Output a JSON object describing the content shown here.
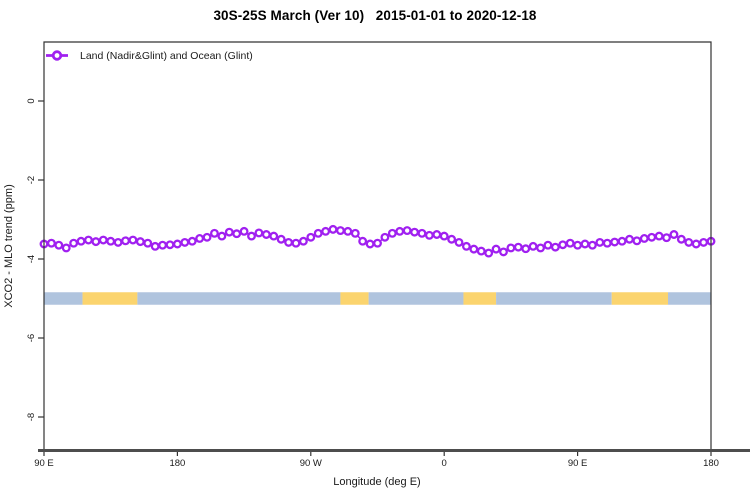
{
  "title": "30S-25S March (Ver 10)   2015-01-01 to 2020-12-18",
  "legend": {
    "label": "Land (Nadir&Glint) and Ocean (Glint)",
    "marker": "open-circle",
    "color": "#A020F0",
    "position": "top-left"
  },
  "axes": {
    "x": {
      "label": "Longitude (deg E)",
      "tick_labels": [
        "90 E",
        "180",
        "90 W",
        "0",
        "90 E",
        "180"
      ]
    },
    "y": {
      "label": "XCO2 - MLO trend (ppm)",
      "tick_labels": [
        "0",
        "-2",
        "-4",
        "-6",
        "-8"
      ]
    }
  },
  "chart_data": {
    "type": "line",
    "title": "30S-25S March (Ver 10)   2015-01-01 to 2020-12-18",
    "xlabel": "Longitude (deg E)",
    "ylabel": "XCO2 - MLO trend (ppm)",
    "xlim": [
      90,
      540
    ],
    "ylim": [
      -8.8,
      1.5
    ],
    "grid": false,
    "legend_position": "top-left",
    "x_ticks": {
      "values": [
        90,
        180,
        270,
        360,
        450,
        540
      ],
      "labels": [
        "90 E",
        "180",
        "90 W",
        "0",
        "90 E",
        "180"
      ]
    },
    "y_ticks": {
      "values": [
        0,
        -2,
        -4,
        -6,
        -8
      ],
      "labels": [
        "0",
        "-2",
        "-4",
        "-6",
        "-8"
      ]
    },
    "series": [
      {
        "name": "Land (Nadir&Glint) and Ocean (Glint)",
        "color": "#A020F0",
        "marker": "open-circle",
        "x": [
          90,
          95,
          100,
          105,
          110,
          115,
          120,
          125,
          130,
          135,
          140,
          145,
          150,
          155,
          160,
          165,
          170,
          175,
          180,
          185,
          190,
          195,
          200,
          205,
          210,
          215,
          220,
          225,
          230,
          235,
          240,
          245,
          250,
          255,
          260,
          265,
          270,
          275,
          280,
          285,
          290,
          295,
          300,
          305,
          310,
          315,
          320,
          325,
          330,
          335,
          340,
          345,
          350,
          355,
          360,
          365,
          370,
          375,
          380,
          385,
          390,
          395,
          400,
          405,
          410,
          415,
          420,
          425,
          430,
          435,
          440,
          445,
          450,
          455,
          460,
          465,
          470,
          475,
          480,
          485,
          490,
          495,
          500,
          505,
          510,
          515,
          520,
          525,
          530,
          535,
          540
        ],
        "values": [
          -3.62,
          -3.6,
          -3.65,
          -3.72,
          -3.6,
          -3.55,
          -3.52,
          -3.56,
          -3.52,
          -3.55,
          -3.58,
          -3.54,
          -3.52,
          -3.56,
          -3.6,
          -3.68,
          -3.65,
          -3.64,
          -3.62,
          -3.58,
          -3.55,
          -3.48,
          -3.45,
          -3.35,
          -3.42,
          -3.32,
          -3.36,
          -3.3,
          -3.42,
          -3.34,
          -3.38,
          -3.42,
          -3.5,
          -3.58,
          -3.6,
          -3.55,
          -3.45,
          -3.35,
          -3.3,
          -3.25,
          -3.28,
          -3.3,
          -3.35,
          -3.55,
          -3.62,
          -3.6,
          -3.45,
          -3.35,
          -3.3,
          -3.28,
          -3.32,
          -3.35,
          -3.4,
          -3.38,
          -3.42,
          -3.5,
          -3.58,
          -3.68,
          -3.75,
          -3.8,
          -3.85,
          -3.75,
          -3.82,
          -3.72,
          -3.7,
          -3.74,
          -3.68,
          -3.72,
          -3.65,
          -3.7,
          -3.64,
          -3.6,
          -3.65,
          -3.62,
          -3.65,
          -3.58,
          -3.6,
          -3.57,
          -3.55,
          -3.5,
          -3.54,
          -3.48,
          -3.45,
          -3.42,
          -3.46,
          -3.38,
          -3.5,
          -3.58,
          -3.62,
          -3.58,
          -3.55
        ]
      }
    ],
    "surface_type_band": {
      "y": -5.0,
      "ocean_color": "#B0C4DE",
      "land_color": "#FBD46E",
      "segments": [
        {
          "from": 90,
          "to": 116,
          "type": "ocean"
        },
        {
          "from": 116,
          "to": 153,
          "type": "land"
        },
        {
          "from": 153,
          "to": 290,
          "type": "ocean"
        },
        {
          "from": 290,
          "to": 309,
          "type": "land"
        },
        {
          "from": 309,
          "to": 373,
          "type": "ocean"
        },
        {
          "from": 373,
          "to": 395,
          "type": "land"
        },
        {
          "from": 395,
          "to": 473,
          "type": "ocean"
        },
        {
          "from": 473,
          "to": 511,
          "type": "land"
        },
        {
          "from": 511,
          "to": 540,
          "type": "ocean"
        }
      ]
    }
  }
}
